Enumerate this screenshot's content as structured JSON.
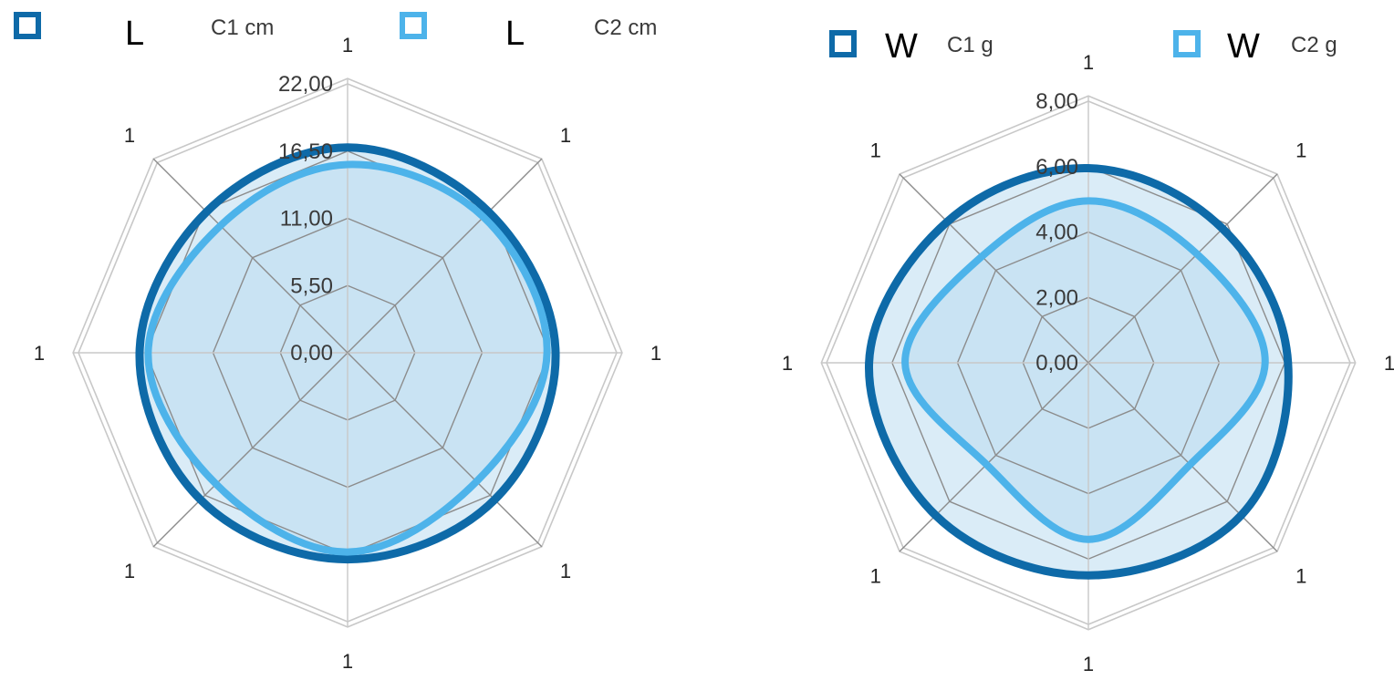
{
  "colors": {
    "series_dark": "#0e6aa8",
    "series_light": "#4db3ea",
    "fill": "#bcdcf1",
    "grid_outer": "#c8c8c8",
    "grid_inner": "#8c8c8c"
  },
  "chart_data": [
    {
      "type": "radar",
      "legend": [
        {
          "letter": "L",
          "text": "C1 cm",
          "icon": "square-outline-dark-icon"
        },
        {
          "letter": "L",
          "text": "C2 cm",
          "icon": "square-outline-light-icon"
        }
      ],
      "axis_labels": [
        "1",
        "1",
        "1",
        "1",
        "1",
        "1",
        "1",
        "1"
      ],
      "radial_ticks": [
        "0,00",
        "5,50",
        "11,00",
        "16,50",
        "22,00"
      ],
      "range": [
        0,
        22
      ],
      "series": [
        {
          "values": [
            16.8,
            16.3,
            17.0,
            17.0,
            16.9,
            17.0,
            17.0,
            16.3
          ]
        },
        {
          "values": [
            15.4,
            15.7,
            16.3,
            14.9,
            16.3,
            15.2,
            16.3,
            14.7
          ]
        }
      ]
    },
    {
      "type": "radar",
      "legend": [
        {
          "letter": "W",
          "text": "C1 g",
          "icon": "square-outline-dark-icon"
        },
        {
          "letter": "W",
          "text": "C2 g",
          "icon": "square-outline-light-icon"
        }
      ],
      "axis_labels": [
        "1",
        "1",
        "1",
        "1",
        "1",
        "1",
        "1",
        "1"
      ],
      "radial_ticks": [
        "0,00",
        "2,00",
        "4,00",
        "6,00",
        "8,00"
      ],
      "range": [
        0,
        8
      ],
      "series": [
        {
          "values": [
            5.95,
            5.8,
            6.1,
            6.6,
            6.5,
            6.6,
            6.7,
            6.1
          ]
        },
        {
          "values": [
            4.95,
            4.7,
            5.4,
            4.4,
            5.4,
            4.4,
            5.6,
            4.6
          ]
        }
      ]
    }
  ]
}
